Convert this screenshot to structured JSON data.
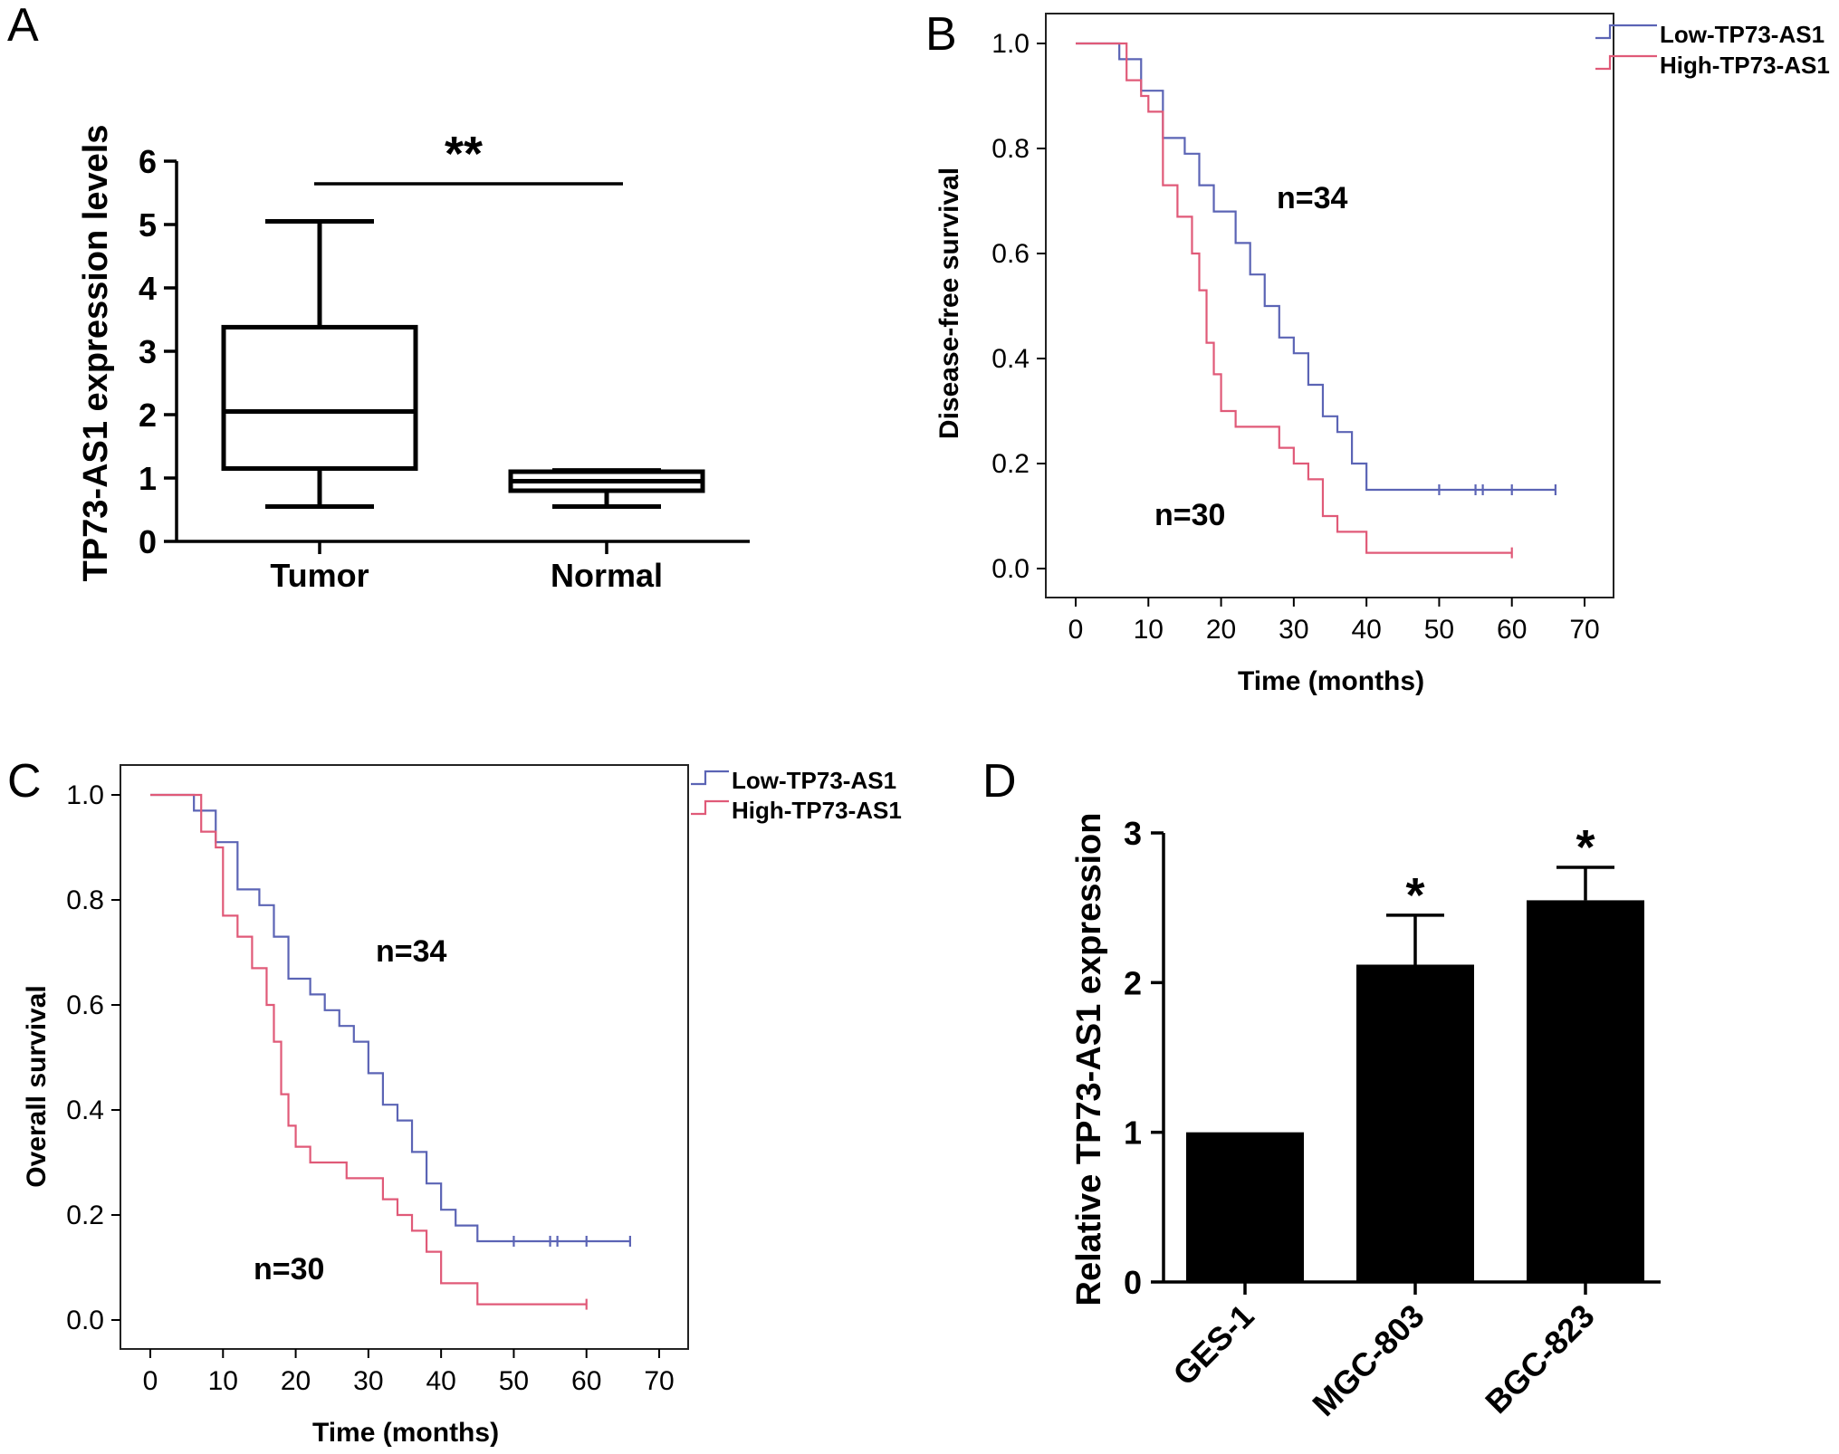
{
  "chart_data": [
    {
      "panel": "A",
      "type": "box",
      "ylabel": "TP73-AS1 expression levels",
      "ylim": [
        0,
        6
      ],
      "yticks": [
        "0",
        "1",
        "2",
        "3",
        "4",
        "5",
        "6"
      ],
      "categories": [
        "Tumor",
        "Normal"
      ],
      "boxes": [
        {
          "category": "Tumor",
          "min": 0.55,
          "q1": 1.15,
          "median": 2.05,
          "q3": 3.38,
          "max": 5.05
        },
        {
          "category": "Normal",
          "min": 0.55,
          "q1": 0.8,
          "median": 0.95,
          "q3": 1.1,
          "max": 1.12
        }
      ],
      "significance": "**"
    },
    {
      "panel": "B",
      "type": "line",
      "ylabel": "Disease-free survival",
      "xlabel": "Time (months)",
      "xlim": [
        0,
        70
      ],
      "ylim": [
        0,
        1.0
      ],
      "xticks": [
        "0",
        "10",
        "20",
        "30",
        "40",
        "50",
        "60",
        "70"
      ],
      "yticks": [
        "0.0",
        "0.2",
        "0.4",
        "0.6",
        "0.8",
        "1.0"
      ],
      "legend": [
        "Low-TP73-AS1",
        "High-TP73-AS1"
      ],
      "annotations": [
        "n=34",
        "n=30"
      ],
      "series": [
        {
          "name": "Low-TP73-AS1",
          "color": "#5b64b5",
          "x": [
            0,
            5,
            6,
            9,
            12,
            15,
            17,
            19,
            22,
            24,
            26,
            28,
            30,
            32,
            34,
            36,
            38,
            40,
            66
          ],
          "y": [
            1.0,
            1.0,
            0.97,
            0.91,
            0.82,
            0.79,
            0.73,
            0.68,
            0.62,
            0.56,
            0.5,
            0.44,
            0.41,
            0.35,
            0.29,
            0.26,
            0.2,
            0.15,
            0.15
          ],
          "censored_x": [
            50,
            55,
            56,
            60,
            66
          ]
        },
        {
          "name": "High-TP73-AS1",
          "color": "#e05a78",
          "x": [
            0,
            5,
            7,
            9,
            10,
            12,
            14,
            16,
            17,
            18,
            19,
            20,
            22,
            25,
            28,
            30,
            32,
            34,
            36,
            38,
            40,
            60
          ],
          "y": [
            1.0,
            1.0,
            0.93,
            0.9,
            0.87,
            0.73,
            0.67,
            0.6,
            0.53,
            0.43,
            0.37,
            0.3,
            0.27,
            0.27,
            0.23,
            0.2,
            0.17,
            0.1,
            0.07,
            0.07,
            0.03,
            0.03
          ],
          "censored_x": [
            60
          ]
        }
      ]
    },
    {
      "panel": "C",
      "type": "line",
      "ylabel": "Overall survival",
      "xlabel": "Time (months)",
      "xlim": [
        0,
        70
      ],
      "ylim": [
        0,
        1.0
      ],
      "xticks": [
        "0",
        "10",
        "20",
        "30",
        "40",
        "50",
        "60",
        "70"
      ],
      "yticks": [
        "0.0",
        "0.2",
        "0.4",
        "0.6",
        "0.8",
        "1.0"
      ],
      "legend": [
        "Low-TP73-AS1",
        "High-TP73-AS1"
      ],
      "annotations": [
        "n=34",
        "n=30"
      ],
      "series": [
        {
          "name": "Low-TP73-AS1",
          "color": "#5b64b5",
          "x": [
            0,
            5,
            6,
            9,
            12,
            15,
            17,
            19,
            22,
            24,
            26,
            28,
            30,
            32,
            34,
            36,
            38,
            40,
            42,
            45,
            66
          ],
          "y": [
            1.0,
            1.0,
            0.97,
            0.91,
            0.82,
            0.79,
            0.73,
            0.65,
            0.62,
            0.59,
            0.56,
            0.53,
            0.47,
            0.41,
            0.38,
            0.32,
            0.26,
            0.21,
            0.18,
            0.15,
            0.15
          ],
          "censored_x": [
            50,
            55,
            56,
            60,
            66
          ]
        },
        {
          "name": "High-TP73-AS1",
          "color": "#e05a78",
          "x": [
            0,
            5,
            7,
            9,
            10,
            12,
            14,
            16,
            17,
            18,
            19,
            20,
            22,
            27,
            32,
            34,
            36,
            38,
            40,
            45,
            60
          ],
          "y": [
            1.0,
            1.0,
            0.93,
            0.9,
            0.77,
            0.73,
            0.67,
            0.6,
            0.53,
            0.43,
            0.37,
            0.33,
            0.3,
            0.27,
            0.23,
            0.2,
            0.17,
            0.13,
            0.07,
            0.03,
            0.03
          ],
          "censored_x": [
            60
          ]
        }
      ]
    },
    {
      "panel": "D",
      "type": "bar",
      "ylabel": "Relative TP73-AS1 expression",
      "ylim": [
        0,
        3
      ],
      "yticks": [
        "0",
        "1",
        "2",
        "3"
      ],
      "categories": [
        "GES-1",
        "MGC-803",
        "BGC-823"
      ],
      "values": [
        1.0,
        2.12,
        2.55
      ],
      "errors": [
        0,
        0.33,
        0.22
      ],
      "significance": [
        "",
        "*",
        "*"
      ]
    }
  ],
  "panels": {
    "a": {
      "letter": "A"
    },
    "b": {
      "letter": "B"
    },
    "c": {
      "letter": "C"
    },
    "d": {
      "letter": "D"
    }
  },
  "colors": {
    "low": "#5b64b5",
    "high": "#e05a78",
    "bar": "#000000"
  }
}
